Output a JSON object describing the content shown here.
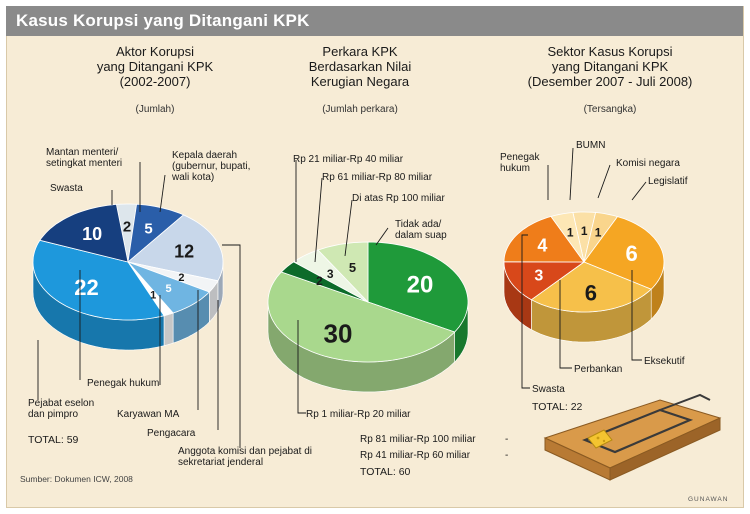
{
  "header": {
    "title": "Kasus Korupsi yang Ditangani KPK"
  },
  "source": "Sumber: Dokumen ICW, 2008",
  "credit": "GUNAWAN",
  "colors": {
    "banner": "#8a8a8a",
    "panel": "#f7ecd6"
  },
  "chart_data": [
    {
      "type": "pie",
      "title_lines": [
        "Aktor Korupsi",
        "yang Ditangani KPK",
        "(2002-2007)"
      ],
      "unit": "(Jumlah)",
      "total_label": "TOTAL: 59",
      "slices": [
        {
          "label": "Mantan menteri/ setingkat menteri",
          "value": 2,
          "color": "#dde6ec"
        },
        {
          "label": "Kepala daerah (gubernur, bupati, wali kota)",
          "value": 5,
          "color": "#2a5ea9"
        },
        {
          "label": "Anggota komisi dan pejabat di sekretariat jenderal",
          "value": 12,
          "color": "#c8d7ea"
        },
        {
          "label": "Pengacara",
          "value": 2,
          "color": "#f2f4f6"
        },
        {
          "label": "Karyawan MA",
          "value": 5,
          "color": "#6fb5e2"
        },
        {
          "label": "Penegak hukum",
          "value": 1,
          "color": "#ffffff"
        },
        {
          "label": "Pejabat eselon dan pimpro",
          "value": 22,
          "color": "#1e98dc"
        },
        {
          "label": "Swasta",
          "value": 10,
          "color": "#163f7f"
        }
      ]
    },
    {
      "type": "pie",
      "title_lines": [
        "Perkara KPK",
        "Berdasarkan Nilai",
        "Kerugian Negara"
      ],
      "unit": "(Jumlah perkara)",
      "total_label": "TOTAL: 60",
      "slices": [
        {
          "label": "Tidak ada/ dalam suap",
          "value": 20,
          "color": "#1f9a3a"
        },
        {
          "label": "Rp 1 miliar-Rp 20 miliar",
          "value": 30,
          "color": "#a9d88d"
        },
        {
          "label": "Rp 21 miliar-Rp 40 miliar",
          "value": 2,
          "color": "#0d6b2a"
        },
        {
          "label": "Rp 61 miliar-Rp 80 miliar",
          "value": 3,
          "color": "#eef6e6"
        },
        {
          "label": "Di atas Rp 100 miliar",
          "value": 5,
          "color": "#cfe8b3"
        },
        {
          "label": "Rp 81 miliar-Rp 100 miliar",
          "value": 0,
          "color": "#ffffff"
        },
        {
          "label": "Rp 41 miliar-Rp 60 miliar",
          "value": 0,
          "color": "#ffffff"
        }
      ],
      "dash": "-"
    },
    {
      "type": "pie",
      "title_lines": [
        "Sektor Kasus Korupsi",
        "yang Ditangani KPK",
        "(Desember 2007 - Juli 2008)"
      ],
      "unit": "(Tersangka)",
      "total_label": "TOTAL: 22",
      "slices": [
        {
          "label": "Legislatif",
          "value": 6,
          "color": "#f5a623"
        },
        {
          "label": "Eksekutif",
          "value": 6,
          "color": "#f6c04a"
        },
        {
          "label": "Perbankan",
          "value": 3,
          "color": "#d8481a"
        },
        {
          "label": "Swasta",
          "value": 4,
          "color": "#ef7d1a"
        },
        {
          "label": "Penegak hukum",
          "value": 1,
          "color": "#fde7b5"
        },
        {
          "label": "BUMN",
          "value": 1,
          "color": "#fbe0a6"
        },
        {
          "label": "Komisi negara",
          "value": 1,
          "color": "#f9d58c"
        }
      ]
    }
  ]
}
